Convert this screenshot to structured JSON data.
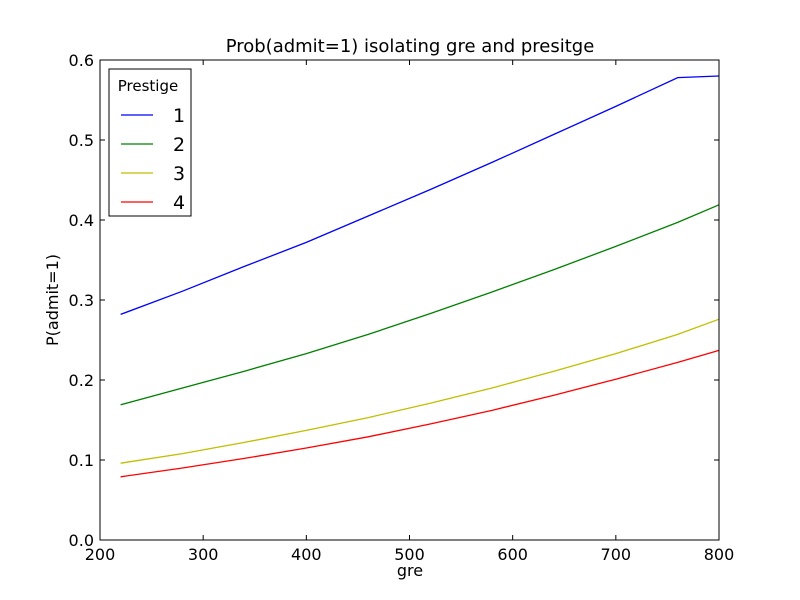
{
  "chart_data": {
    "type": "line",
    "title": "Prob(admit=1) isolating gre and presitge",
    "xlabel": "gre",
    "ylabel": "P(admit=1)",
    "xlim": [
      200,
      800
    ],
    "ylim": [
      0.0,
      0.6
    ],
    "xticks": [
      "200",
      "300",
      "400",
      "500",
      "600",
      "700",
      "800"
    ],
    "yticks": [
      "0.0",
      "0.1",
      "0.2",
      "0.3",
      "0.4",
      "0.5",
      "0.6"
    ],
    "grid": false,
    "legend": {
      "title": "Prestige",
      "placement": "top-left"
    },
    "x": [
      220,
      280,
      340,
      400,
      460,
      520,
      580,
      640,
      700,
      760,
      800
    ],
    "series": [
      {
        "name": "1",
        "color": "#0000ff",
        "values": [
          0.282,
          0.311,
          0.342,
          0.372,
          0.405,
          0.438,
          0.472,
          0.507,
          0.542,
          0.578,
          0.58
        ]
      },
      {
        "name": "2",
        "color": "#008000",
        "values": [
          0.169,
          0.19,
          0.211,
          0.233,
          0.257,
          0.283,
          0.31,
          0.338,
          0.367,
          0.397,
          0.419
        ]
      },
      {
        "name": "3",
        "color": "#bfbf00",
        "values": [
          0.096,
          0.108,
          0.122,
          0.137,
          0.153,
          0.171,
          0.19,
          0.211,
          0.233,
          0.257,
          0.276
        ]
      },
      {
        "name": "4",
        "color": "#ff0000",
        "values": [
          0.079,
          0.09,
          0.102,
          0.115,
          0.129,
          0.145,
          0.162,
          0.181,
          0.201,
          0.222,
          0.237
        ]
      }
    ]
  }
}
